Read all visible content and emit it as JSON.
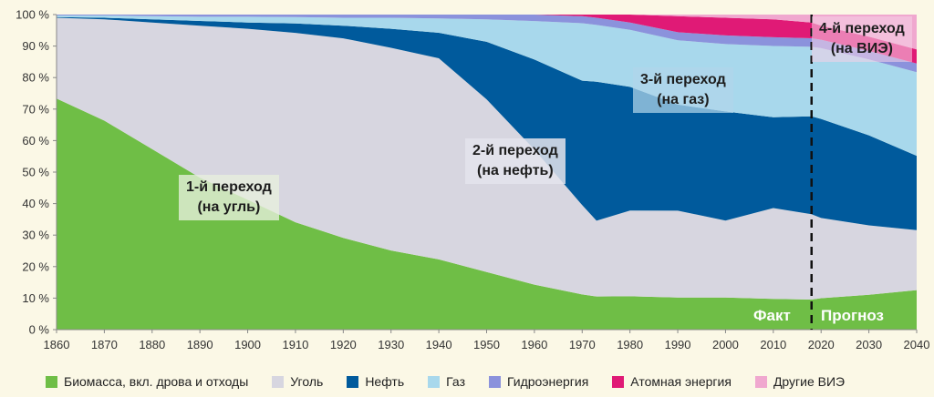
{
  "chart_data": {
    "type": "area",
    "stacked": true,
    "percent_stacked": true,
    "title": "",
    "xlabel": "",
    "ylabel": "",
    "xlim": [
      1860,
      2040
    ],
    "ylim": [
      0,
      100
    ],
    "x_ticks": [
      "1860",
      "1870",
      "1880",
      "1890",
      "1900",
      "1910",
      "1920",
      "1930",
      "1940",
      "1950",
      "1960",
      "1970",
      "1980",
      "1990",
      "2000",
      "2010",
      "2020",
      "2030",
      "2040"
    ],
    "y_ticks": [
      "0 %",
      "10 %",
      "20 %",
      "30 %",
      "40 %",
      "50 %",
      "60 %",
      "70 %",
      "80 %",
      "90 %",
      "100 %"
    ],
    "grid": false,
    "legend_position": "bottom",
    "x": [
      1860,
      1870,
      1880,
      1890,
      1900,
      1910,
      1920,
      1930,
      1940,
      1950,
      1960,
      1970,
      1973,
      1980,
      1990,
      2000,
      2010,
      2018,
      2020,
      2030,
      2040
    ],
    "series": [
      {
        "name": "Биомасса, вкл. дрова и отходы",
        "color": "#6fbe46",
        "values": [
          73,
          66,
          57,
          48,
          41,
          34,
          29,
          25,
          22,
          18,
          14,
          11,
          10.5,
          10.5,
          10,
          10,
          9.5,
          9.5,
          10,
          11,
          12.5
        ]
      },
      {
        "name": "Уголь",
        "color": "#d7d6e0",
        "values": [
          25.5,
          32,
          40,
          48,
          54,
          60,
          63,
          64,
          63,
          54,
          42,
          28,
          24,
          27,
          27,
          24,
          28,
          27,
          25.5,
          22,
          19
        ]
      },
      {
        "name": "Нефть",
        "color": "#005a9c",
        "values": [
          0.2,
          0.5,
          1,
          1.5,
          2,
          3,
          4,
          6,
          8,
          18,
          28,
          39,
          44,
          39,
          33,
          34,
          28,
          31,
          31.5,
          28.5,
          23.5
        ]
      },
      {
        "name": "Газ",
        "color": "#a8d8ec",
        "values": [
          0.5,
          0.7,
          1,
          1.3,
          1.8,
          2,
          2.5,
          3.5,
          4.5,
          7,
          12,
          18,
          18,
          18,
          20,
          21,
          22,
          22,
          22.5,
          24,
          26.5
        ]
      },
      {
        "name": "Гидроэнергия",
        "color": "#8b92dc",
        "values": [
          0.3,
          0.3,
          0.5,
          0.7,
          0.7,
          0.8,
          1,
          1,
          1.2,
          1.5,
          2,
          2.2,
          2.3,
          2.3,
          2.5,
          2.7,
          2.7,
          2.7,
          2.7,
          2.7,
          2.7
        ]
      },
      {
        "name": "Атомная энергия",
        "color": "#e01a76",
        "values": [
          0,
          0,
          0,
          0,
          0,
          0,
          0,
          0,
          0,
          0,
          0,
          0.5,
          1,
          2.5,
          5,
          5.5,
          5.5,
          5,
          4.5,
          4.5,
          4.5
        ]
      },
      {
        "name": "Другие ВИЭ",
        "color": "#f0a8cf",
        "values": [
          0,
          0,
          0,
          0,
          0,
          0,
          0,
          0,
          0,
          0,
          0,
          0,
          0,
          0,
          0.5,
          1,
          1.5,
          2.5,
          3.5,
          7,
          11
        ]
      }
    ],
    "background_color": "#fbf8e6",
    "forecast_divider_x": 2018,
    "phase_labels": {
      "fact": "Факт",
      "forecast": "Прогноз"
    },
    "annotations": [
      {
        "line1": "1-й переход",
        "line2": "(на угль)"
      },
      {
        "line1": "2-й переход",
        "line2": "(на нефть)"
      },
      {
        "line1": "3-й переход",
        "line2": "(на газ)"
      },
      {
        "line1": "4-й переход",
        "line2": "(на ВИЭ)"
      }
    ]
  }
}
